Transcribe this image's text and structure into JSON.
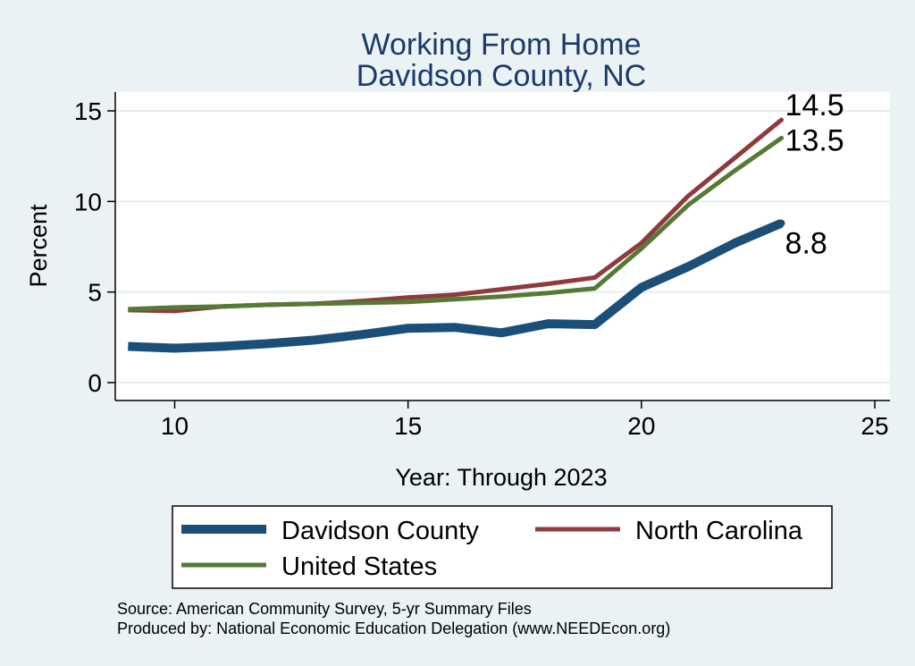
{
  "chart_data": {
    "type": "line",
    "title": "Working From Home",
    "subtitle": "Davidson County, NC",
    "xlabel": "Year: Through 2023",
    "ylabel": "Percent",
    "xlim": [
      9,
      25
    ],
    "ylim": [
      0,
      15
    ],
    "xticks": [
      10,
      15,
      20,
      25
    ],
    "yticks": [
      0,
      5,
      10,
      15
    ],
    "grid": true,
    "legend_position": "bottom",
    "series": [
      {
        "name": "Davidson County",
        "color": "#1c4f78",
        "x": [
          9,
          10,
          11,
          12,
          13,
          14,
          15,
          16,
          17,
          18,
          19,
          20,
          21,
          22,
          23
        ],
        "values": [
          2.0,
          1.9,
          2.0,
          2.15,
          2.35,
          2.65,
          3.0,
          3.05,
          2.75,
          3.25,
          3.2,
          5.25,
          6.4,
          7.7,
          8.8
        ],
        "end_label": "8.8"
      },
      {
        "name": "North Carolina",
        "color": "#8f3a3d",
        "x": [
          9,
          10,
          11,
          12,
          13,
          14,
          15,
          16,
          17,
          18,
          19,
          20,
          21,
          22,
          23
        ],
        "values": [
          4.0,
          3.95,
          4.2,
          4.3,
          4.35,
          4.5,
          4.7,
          4.85,
          5.15,
          5.45,
          5.8,
          7.7,
          10.3,
          12.4,
          14.5
        ],
        "end_label": "14.5"
      },
      {
        "name": "United States",
        "color": "#557a34",
        "x": [
          9,
          10,
          11,
          12,
          13,
          14,
          15,
          16,
          17,
          18,
          19,
          20,
          21,
          22,
          23
        ],
        "values": [
          4.05,
          4.15,
          4.2,
          4.3,
          4.35,
          4.4,
          4.45,
          4.6,
          4.75,
          4.95,
          5.2,
          7.4,
          9.8,
          11.7,
          13.5
        ],
        "end_label": "13.5"
      }
    ]
  },
  "notes": {
    "source": "Source: American Community Survey, 5-yr Summary Files",
    "produced_by": "Produced by: National Economic Education Delegation (www.NEEDEcon.org)"
  }
}
